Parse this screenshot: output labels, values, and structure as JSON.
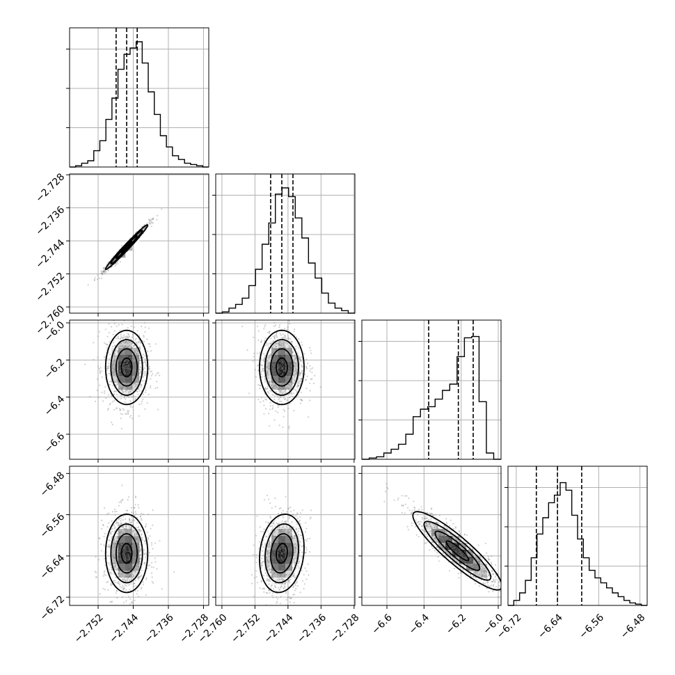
{
  "chart_data": {
    "type": "scatter",
    "subtype": "corner-plot",
    "title": "",
    "grid": true,
    "legend": "none",
    "params": [
      {
        "range": [
          -2.7585,
          -2.7268
        ],
        "ticks": [
          -2.752,
          -2.744,
          -2.736,
          -2.728
        ],
        "tick_labels": [
          "−2.752",
          "−2.744",
          "−2.736",
          "−2.728"
        ],
        "quantiles": [
          -2.7479,
          -2.7455,
          -2.7431
        ]
      },
      {
        "range": [
          -2.7615,
          -2.7278
        ],
        "ticks": [
          -2.76,
          -2.752,
          -2.744,
          -2.736,
          -2.728
        ],
        "tick_labels": [
          "−2.760",
          "−2.752",
          "−2.744",
          "−2.736",
          "−2.728"
        ],
        "quantiles": [
          -2.7482,
          -2.7455,
          -2.7428
        ]
      },
      {
        "range": [
          -6.735,
          -5.985
        ],
        "ticks": [
          -6.6,
          -6.4,
          -6.2,
          -6.0
        ],
        "tick_labels": [
          "−6.6",
          "−6.4",
          "−6.2",
          "−6.0"
        ],
        "quantiles": [
          -6.375,
          -6.215,
          -6.135
        ]
      },
      {
        "range": [
          -6.736,
          -6.466
        ],
        "ticks": [
          -6.72,
          -6.64,
          -6.56,
          -6.48
        ],
        "tick_labels": [
          "−6.72",
          "−6.64",
          "−6.56",
          "−6.48"
        ],
        "quantiles": [
          -6.681,
          -6.64,
          -6.593
        ]
      }
    ],
    "histograms": [
      {
        "bin_start": -2.7585,
        "bin_end": -2.7268,
        "counts": [
          0.0,
          0.01,
          0.03,
          0.05,
          0.13,
          0.21,
          0.38,
          0.55,
          0.78,
          0.9,
          0.95,
          1.0,
          0.83,
          0.6,
          0.42,
          0.25,
          0.16,
          0.09,
          0.06,
          0.03,
          0.02,
          0.01,
          0.0
        ]
      },
      {
        "bin_start": -2.7615,
        "bin_end": -2.7278,
        "counts": [
          0.0,
          0.01,
          0.04,
          0.07,
          0.12,
          0.22,
          0.35,
          0.55,
          0.72,
          0.95,
          1.0,
          0.93,
          0.76,
          0.6,
          0.4,
          0.28,
          0.16,
          0.08,
          0.04,
          0.02,
          0.0
        ]
      },
      {
        "bin_start": -6.735,
        "bin_end": -5.985,
        "counts": [
          0.0,
          0.01,
          0.02,
          0.05,
          0.08,
          0.12,
          0.2,
          0.34,
          0.4,
          0.42,
          0.48,
          0.55,
          0.6,
          0.82,
          0.97,
          0.98,
          0.46,
          0.05,
          0.0
        ]
      },
      {
        "bin_start": -6.736,
        "bin_end": -6.466,
        "counts": [
          0.0,
          0.04,
          0.1,
          0.2,
          0.38,
          0.57,
          0.7,
          0.82,
          0.88,
          0.98,
          0.92,
          0.72,
          0.53,
          0.38,
          0.28,
          0.22,
          0.18,
          0.14,
          0.1,
          0.07,
          0.04,
          0.02,
          0.01,
          0.0
        ]
      }
    ],
    "pairs": [
      {
        "x": 0,
        "y": 1,
        "center": [
          -2.7455,
          -2.7455
        ],
        "sigma": [
          0.0024,
          0.0027
        ],
        "rho": 0.985
      },
      {
        "x": 0,
        "y": 2,
        "center": [
          -2.7455,
          -6.24
        ],
        "sigma": [
          0.0024,
          0.1
        ],
        "rho": 0.0
      },
      {
        "x": 1,
        "y": 2,
        "center": [
          -2.7455,
          -6.24
        ],
        "sigma": [
          0.0027,
          0.1
        ],
        "rho": 0.0
      },
      {
        "x": 0,
        "y": 3,
        "center": [
          -2.7455,
          -6.635
        ],
        "sigma": [
          0.0024,
          0.038
        ],
        "rho": 0.0
      },
      {
        "x": 1,
        "y": 3,
        "center": [
          -2.7455,
          -6.635
        ],
        "sigma": [
          0.0027,
          0.038
        ],
        "rho": 0.15
      },
      {
        "x": 2,
        "y": 3,
        "center": [
          -6.22,
          -6.63
        ],
        "sigma": [
          0.12,
          0.038
        ],
        "rho": -0.9
      }
    ]
  }
}
